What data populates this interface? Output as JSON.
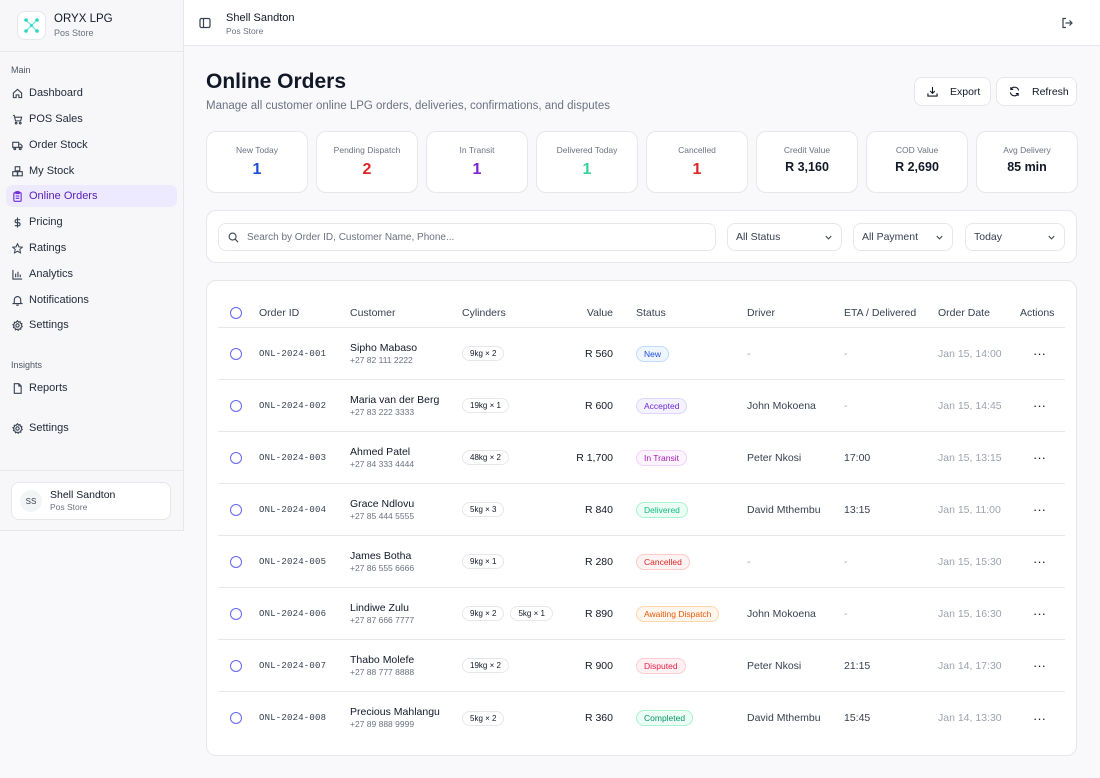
{
  "brand": {
    "name": "ORYX LPG",
    "sub": "Pos Store"
  },
  "sidebar": {
    "main_label": "Main",
    "items": [
      {
        "label": "Dashboard",
        "icon": "home-icon"
      },
      {
        "label": "POS Sales",
        "icon": "cart-icon"
      },
      {
        "label": "Order Stock",
        "icon": "truck-icon"
      },
      {
        "label": "My Stock",
        "icon": "boxes-icon"
      },
      {
        "label": "Online Orders",
        "icon": "clipboard-icon",
        "active": true
      },
      {
        "label": "Pricing",
        "icon": "dollar-icon"
      },
      {
        "label": "Ratings",
        "icon": "star-icon"
      },
      {
        "label": "Analytics",
        "icon": "bar-chart-icon"
      },
      {
        "label": "Notifications",
        "icon": "bell-icon"
      },
      {
        "label": "Settings",
        "icon": "gear-icon"
      }
    ],
    "insights_label": "Insights",
    "insights_items": [
      {
        "label": "Reports",
        "icon": "file-icon"
      }
    ],
    "bottom_settings": {
      "label": "Settings",
      "icon": "gear-icon"
    }
  },
  "user": {
    "initials": "SS",
    "name": "Shell Sandton",
    "sub": "Pos Store"
  },
  "header": {
    "title": "Shell Sandton",
    "sub": "Pos Store"
  },
  "page": {
    "title": "Online Orders",
    "subtitle": "Manage all customer online LPG orders, deliveries, confirmations, and disputes",
    "export_label": "Export",
    "refresh_label": "Refresh"
  },
  "stats": [
    {
      "label": "New Today",
      "value": "1",
      "color": "#1d4ed8"
    },
    {
      "label": "Pending Dispatch",
      "value": "2",
      "color": "#dc2626"
    },
    {
      "label": "In Transit",
      "value": "1",
      "color": "#7e22ce"
    },
    {
      "label": "Delivered Today",
      "value": "1",
      "color": "#34d399"
    },
    {
      "label": "Cancelled",
      "value": "1",
      "color": "#dc2626"
    },
    {
      "label": "Credit Value",
      "value": "R 3,160",
      "color": "#111827"
    },
    {
      "label": "COD Value",
      "value": "R 2,690",
      "color": "#111827"
    },
    {
      "label": "Avg Delivery",
      "value": "85 min",
      "color": "#111827"
    }
  ],
  "filters": {
    "search_placeholder": "Search by Order ID, Customer Name, Phone...",
    "status": "All Status",
    "payment": "All Payment",
    "date": "Today"
  },
  "table": {
    "headers": {
      "order_id": "Order ID",
      "customer": "Customer",
      "cylinders": "Cylinders",
      "value": "Value",
      "status": "Status",
      "driver": "Driver",
      "eta": "ETA / Delivered",
      "date": "Order Date",
      "actions": "Actions"
    },
    "rows": [
      {
        "id": "ONL-2024-001",
        "name": "Sipho Mabaso",
        "phone": "+27 82 111 2222",
        "cyl": [
          "9kg × 2"
        ],
        "value": "R 560",
        "status": "New",
        "driver": "-",
        "eta": "-",
        "date": "Jan 15, 14:00"
      },
      {
        "id": "ONL-2024-002",
        "name": "Maria van der Berg",
        "phone": "+27 83 222 3333",
        "cyl": [
          "19kg × 1"
        ],
        "value": "R 600",
        "status": "Accepted",
        "driver": "John Mokoena",
        "eta": "-",
        "date": "Jan 15, 14:45"
      },
      {
        "id": "ONL-2024-003",
        "name": "Ahmed Patel",
        "phone": "+27 84 333 4444",
        "cyl": [
          "48kg × 2"
        ],
        "value": "R 1,700",
        "status": "In Transit",
        "driver": "Peter Nkosi",
        "eta": "17:00",
        "date": "Jan 15, 13:15"
      },
      {
        "id": "ONL-2024-004",
        "name": "Grace Ndlovu",
        "phone": "+27 85 444 5555",
        "cyl": [
          "5kg × 3"
        ],
        "value": "R 840",
        "status": "Delivered",
        "driver": "David Mthembu",
        "eta": "13:15",
        "date": "Jan 15, 11:00"
      },
      {
        "id": "ONL-2024-005",
        "name": "James Botha",
        "phone": "+27 86 555 6666",
        "cyl": [
          "9kg × 1"
        ],
        "value": "R 280",
        "status": "Cancelled",
        "driver": "-",
        "eta": "-",
        "date": "Jan 15, 15:30"
      },
      {
        "id": "ONL-2024-006",
        "name": "Lindiwe Zulu",
        "phone": "+27 87 666 7777",
        "cyl": [
          "9kg × 2",
          "5kg × 1"
        ],
        "value": "R 890",
        "status": "Awaiting Dispatch",
        "driver": "John Mokoena",
        "eta": "-",
        "date": "Jan 15, 16:30"
      },
      {
        "id": "ONL-2024-007",
        "name": "Thabo Molefe",
        "phone": "+27 88 777 8888",
        "cyl": [
          "19kg × 2"
        ],
        "value": "R 900",
        "status": "Disputed",
        "driver": "Peter Nkosi",
        "eta": "21:15",
        "date": "Jan 14, 17:30"
      },
      {
        "id": "ONL-2024-008",
        "name": "Precious Mahlangu",
        "phone": "+27 89 888 9999",
        "cyl": [
          "5kg × 2"
        ],
        "value": "R 360",
        "status": "Completed",
        "driver": "David Mthembu",
        "eta": "15:45",
        "date": "Jan 14, 13:30"
      }
    ],
    "actions_glyph": "···"
  },
  "status_colors": {
    "New": {
      "fg": "#1d4ed8",
      "bg": "#eff6ff",
      "border": "#bfdbfe"
    },
    "Accepted": {
      "fg": "#6d28d9",
      "bg": "#f5f3ff",
      "border": "#ddd6fe"
    },
    "In Transit": {
      "fg": "#a21caf",
      "bg": "#fdf4ff",
      "border": "#f5d0fe"
    },
    "Delivered": {
      "fg": "#10b981",
      "bg": "#ecfdf5",
      "border": "#a7f3d0"
    },
    "Cancelled": {
      "fg": "#dc2626",
      "bg": "#fef2f2",
      "border": "#fecaca"
    },
    "Awaiting Dispatch": {
      "fg": "#ea580c",
      "bg": "#fff7ed",
      "border": "#fed7aa"
    },
    "Disputed": {
      "fg": "#e11d48",
      "bg": "#fff1f2",
      "border": "#fecdd3"
    },
    "Completed": {
      "fg": "#059669",
      "bg": "#ecfdf5",
      "border": "#a7f3d0"
    }
  }
}
